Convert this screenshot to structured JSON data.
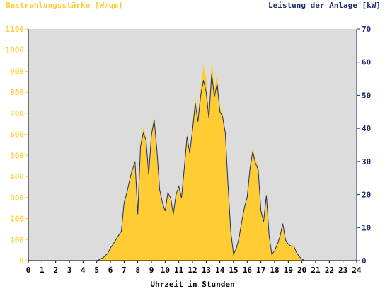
{
  "chart_data": {
    "type": "area",
    "title": "",
    "ylabel_left": "Bestrahlungsstärke [W/qm]",
    "ylabel_right": "Leistung der Anlage [kW]",
    "xlabel": "Uhrzeit in Stunden",
    "x_ticks": [
      "0",
      "1",
      "2",
      "3",
      "4",
      "5",
      "6",
      "7",
      "8",
      "9",
      "10",
      "11",
      "12",
      "13",
      "14",
      "15",
      "16",
      "17",
      "18",
      "19",
      "20",
      "21",
      "22",
      "23",
      "24"
    ],
    "y_left_ticks": [
      "0",
      "100",
      "200",
      "300",
      "400",
      "500",
      "600",
      "700",
      "800",
      "900",
      "1000",
      "1100"
    ],
    "y_right_ticks": [
      "0",
      "10",
      "20",
      "30",
      "40",
      "50",
      "60",
      "70"
    ],
    "xlim": [
      0,
      24
    ],
    "ylim_left": [
      0,
      1100
    ],
    "ylim_right": [
      0,
      70
    ],
    "grid": false,
    "colors": {
      "irradiance": "#ffcc33",
      "power": "#1f2f6e",
      "left_axis": "#ffcc33",
      "right_axis": "#1f2f6e",
      "plot_background": "#dcdcdc"
    },
    "series": [
      {
        "name": "Bestrahlungsstärke [W/qm]",
        "kind": "area",
        "axis": "left",
        "x": [
          0,
          5,
          5.2,
          5.5,
          5.8,
          6.0,
          6.2,
          6.5,
          6.8,
          7.0,
          7.2,
          7.5,
          7.8,
          8.0,
          8.2,
          8.4,
          8.6,
          8.8,
          9.0,
          9.2,
          9.4,
          9.6,
          9.8,
          10.0,
          10.2,
          10.4,
          10.6,
          10.8,
          11.0,
          11.2,
          11.4,
          11.6,
          11.8,
          12.0,
          12.2,
          12.4,
          12.6,
          12.8,
          13.0,
          13.2,
          13.4,
          13.6,
          13.8,
          14.0,
          14.2,
          14.4,
          14.6,
          14.8,
          15.0,
          15.2,
          15.4,
          15.6,
          15.8,
          16.0,
          16.2,
          16.4,
          16.6,
          16.8,
          17.0,
          17.2,
          17.4,
          17.6,
          17.8,
          18.0,
          18.2,
          18.4,
          18.6,
          18.8,
          19.0,
          19.2,
          19.4,
          19.6,
          19.8,
          20.0,
          20.2,
          20.4,
          20.6,
          24
        ],
        "y": [
          0,
          0,
          5,
          15,
          35,
          60,
          80,
          110,
          140,
          280,
          330,
          420,
          480,
          220,
          560,
          630,
          590,
          420,
          620,
          690,
          540,
          340,
          280,
          240,
          330,
          300,
          220,
          320,
          360,
          300,
          450,
          610,
          520,
          640,
          780,
          690,
          820,
          930,
          870,
          700,
          960,
          810,
          890,
          730,
          700,
          620,
          360,
          140,
          30,
          60,
          110,
          190,
          260,
          310,
          450,
          540,
          480,
          450,
          240,
          190,
          320,
          120,
          30,
          50,
          80,
          120,
          180,
          100,
          80,
          70,
          70,
          40,
          20,
          8,
          0,
          0,
          0,
          0
        ]
      },
      {
        "name": "Leistung der Anlage [kW]",
        "kind": "line",
        "axis": "right",
        "x": [
          0,
          5,
          5.2,
          5.5,
          5.8,
          6.0,
          6.2,
          6.5,
          6.8,
          7.0,
          7.2,
          7.5,
          7.8,
          8.0,
          8.2,
          8.4,
          8.6,
          8.8,
          9.0,
          9.2,
          9.4,
          9.6,
          9.8,
          10.0,
          10.2,
          10.4,
          10.6,
          10.8,
          11.0,
          11.2,
          11.4,
          11.6,
          11.8,
          12.0,
          12.2,
          12.4,
          12.6,
          12.8,
          13.0,
          13.2,
          13.4,
          13.6,
          13.8,
          14.0,
          14.2,
          14.4,
          14.6,
          14.8,
          15.0,
          15.2,
          15.4,
          15.6,
          15.8,
          16.0,
          16.2,
          16.4,
          16.6,
          16.8,
          17.0,
          17.2,
          17.4,
          17.6,
          17.8,
          18.0,
          18.2,
          18.4,
          18.6,
          18.8,
          19.0,
          19.2,
          19.4,
          19.6,
          19.8,
          20.0,
          20.2,
          20.4,
          20.6,
          24
        ],
        "y": [
          0,
          0,
          0.3,
          1,
          2.2,
          3.8,
          5,
          7,
          8.9,
          17.5,
          20.5,
          26,
          30,
          14,
          34.5,
          38.5,
          36.5,
          26,
          38,
          42.5,
          33.5,
          21.5,
          17.5,
          15,
          20.5,
          19,
          14,
          20,
          22.5,
          19,
          28,
          37.5,
          32.5,
          39.5,
          47.5,
          42,
          50,
          54.5,
          51,
          43,
          56.5,
          49.5,
          53.5,
          45,
          43.5,
          38.5,
          22.5,
          8.7,
          1.9,
          3.7,
          6.8,
          11.8,
          16.2,
          19.2,
          27.7,
          33,
          29.5,
          27.6,
          15,
          11.8,
          19.8,
          7.4,
          1.9,
          3,
          4.9,
          7.4,
          11.2,
          6.2,
          5,
          4.4,
          4.4,
          2.5,
          1.2,
          0.5,
          0,
          0,
          0,
          0
        ]
      }
    ]
  }
}
